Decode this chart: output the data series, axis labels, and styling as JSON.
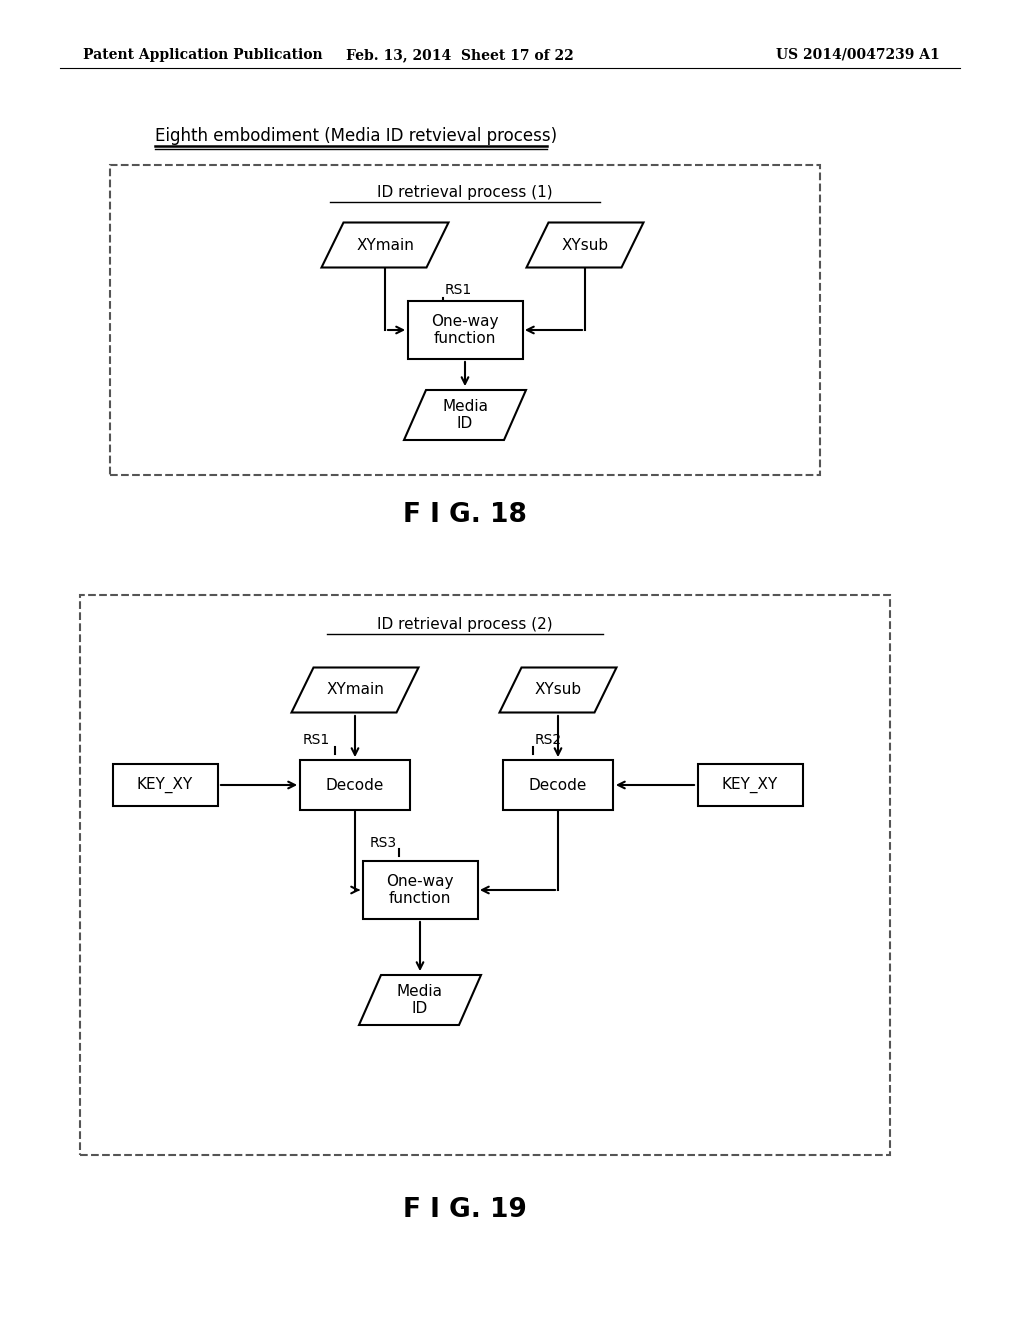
{
  "header_left": "Patent Application Publication",
  "header_mid": "Feb. 13, 2014  Sheet 17 of 22",
  "header_right": "US 2014/0047239 A1",
  "fig18_title": "Eighth embodiment (Media ID retvieval process)",
  "fig18_subtitle": "ID retrieval process (1)",
  "fig19_subtitle": "ID retrieval process (2)",
  "fig18_label": "F I G. 18",
  "fig19_label": "F I G. 19",
  "bg_color": "#ffffff",
  "text_color": "#000000"
}
